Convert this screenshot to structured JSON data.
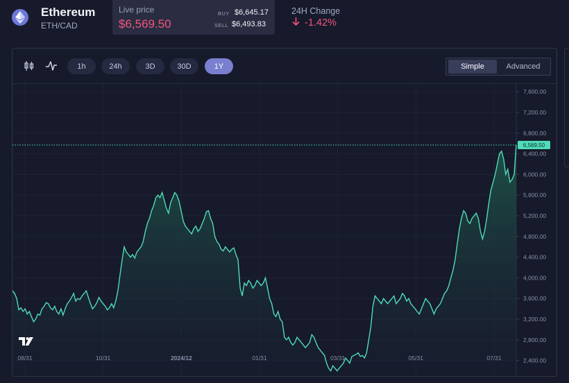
{
  "asset": {
    "name": "Ethereum",
    "pair": "ETH/CAD",
    "icon": "ethereum-icon"
  },
  "live_price": {
    "label": "Live price",
    "value": "$6,569.50",
    "buy_label": "BUY",
    "buy_value": "$6,645.17",
    "sell_label": "SELL",
    "sell_value": "$6,493.83"
  },
  "change": {
    "label": "24H Change",
    "value": "-1.42%",
    "direction_icon": "arrow-down-icon"
  },
  "toolbar": {
    "chart_type_icon": "candlestick-icon",
    "indicator_icon": "line-chart-icon",
    "ranges": [
      "1h",
      "24h",
      "3D",
      "30D",
      "1Y"
    ],
    "active_range": "1Y",
    "modes": [
      "Simple",
      "Advanced"
    ],
    "active_mode": "Simple"
  },
  "colors": {
    "accent_line": "#4fdcb8",
    "negative": "#f0557b",
    "active_button": "#7b7fcf",
    "background": "#171a2b"
  },
  "chart_data": {
    "type": "area",
    "x_tick_labels": [
      "08/31",
      "10/31",
      "2024/12",
      "01/31",
      "03/31",
      "05/31",
      "07/31"
    ],
    "y_ticks": [
      "2,400.00",
      "2,800.00",
      "3,200.00",
      "3,600.00",
      "4,000.00",
      "4,400.00",
      "4,800.00",
      "5,200.00",
      "5,600.00",
      "6,000.00",
      "6,400.00",
      "6,800.00",
      "7,200.00",
      "7,600.00"
    ],
    "ylim": [
      2100,
      7750
    ],
    "current_value": 6569.5,
    "current_label": "6,569.50",
    "watermark": "TV",
    "grid": true,
    "series": [
      {
        "values": [
          3750,
          3700,
          3600,
          3380,
          3420,
          3350,
          3400,
          3300,
          3350,
          3250,
          3150,
          3200,
          3300,
          3280,
          3400,
          3450,
          3520,
          3500,
          3420,
          3380,
          3450,
          3350,
          3300,
          3400,
          3280,
          3400,
          3500,
          3550,
          3620,
          3700,
          3550,
          3600,
          3580,
          3650,
          3700,
          3750,
          3620,
          3500,
          3400,
          3450,
          3520,
          3620,
          3550,
          3500,
          3450,
          3380,
          3420,
          3500,
          3420,
          3550,
          3750,
          4050,
          4350,
          4600,
          4500,
          4450,
          4400,
          4450,
          4380,
          4500,
          4550,
          4600,
          4700,
          4900,
          5050,
          5150,
          5300,
          5400,
          5550,
          5600,
          5550,
          5650,
          5500,
          5350,
          5250,
          5450,
          5550,
          5650,
          5600,
          5480,
          5300,
          5100,
          5000,
          4950,
          4900,
          4850,
          4950,
          5000,
          4900,
          4950,
          5050,
          5150,
          5280,
          5300,
          5150,
          5050,
          4800,
          4700,
          4650,
          4550,
          4520,
          4600,
          4550,
          4500,
          4550,
          4580,
          4450,
          4350,
          3800,
          3650,
          3900,
          3850,
          3950,
          3900,
          3800,
          3850,
          3950,
          3900,
          3850,
          3900,
          4000,
          3800,
          3600,
          3500,
          3300,
          3250,
          3350,
          3200,
          3150,
          2850,
          2800,
          2850,
          2750,
          2700,
          2750,
          2850,
          2800,
          2750,
          2700,
          2650,
          2700,
          2750,
          2900,
          2850,
          2750,
          2650,
          2600,
          2550,
          2500,
          2350,
          2250,
          2200,
          2300,
          2250,
          2200,
          2250,
          2300,
          2350,
          2450,
          2400,
          2350,
          2480,
          2500,
          2520,
          2550,
          2480,
          2500,
          2450,
          2550,
          2800,
          3050,
          3450,
          3650,
          3600,
          3550,
          3500,
          3600,
          3550,
          3500,
          3550,
          3600,
          3650,
          3500,
          3550,
          3600,
          3700,
          3650,
          3550,
          3600,
          3500,
          3450,
          3400,
          3350,
          3300,
          3400,
          3500,
          3600,
          3550,
          3500,
          3400,
          3300,
          3400,
          3450,
          3500,
          3600,
          3700,
          3750,
          3850,
          4000,
          4150,
          4350,
          4650,
          4950,
          5150,
          5300,
          5250,
          5100,
          5050,
          5150,
          5200,
          5250,
          5150,
          4900,
          4750,
          4900,
          5150,
          5450,
          5700,
          5850,
          6000,
          6200,
          6400,
          6450,
          6300,
          6000,
          6100,
          5850,
          5900,
          6000,
          6569.5
        ]
      }
    ]
  }
}
